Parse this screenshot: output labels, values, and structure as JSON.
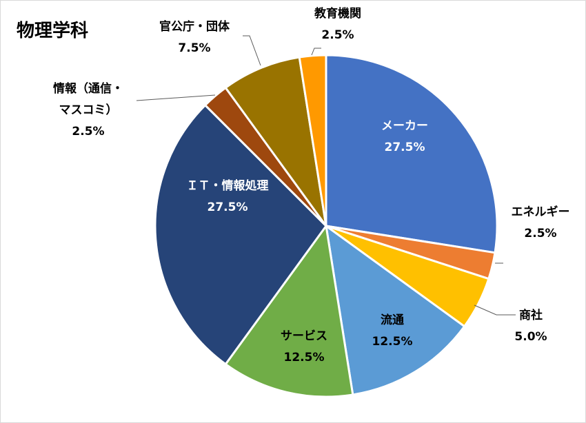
{
  "chart_data": {
    "type": "pie",
    "title": "物理学科",
    "slices": [
      {
        "name": "メーカー",
        "value": 27.5,
        "label": "27.5%",
        "color": "#4472C4"
      },
      {
        "name": "エネルギー",
        "value": 2.5,
        "label": "2.5%",
        "color": "#ED7D31"
      },
      {
        "name": "商社",
        "value": 5.0,
        "label": "5.0%",
        "color": "#FFC000"
      },
      {
        "name": "流通",
        "value": 12.5,
        "label": "12.5%",
        "color": "#5B9BD5"
      },
      {
        "name": "サービス",
        "value": 12.5,
        "label": "12.5%",
        "color": "#70AD47"
      },
      {
        "name": "ＩＴ・情報処理",
        "value": 27.5,
        "label": "27.5%",
        "color": "#264478"
      },
      {
        "name": "情報（通信・マスコミ）",
        "value": 2.5,
        "label": "2.5%",
        "color": "#9E480E"
      },
      {
        "name": "官公庁・団体",
        "value": 7.5,
        "label": "7.5%",
        "color": "#997300"
      },
      {
        "name": "教育機関",
        "value": 2.5,
        "label": "2.5%",
        "color": "#FF9900"
      }
    ]
  }
}
